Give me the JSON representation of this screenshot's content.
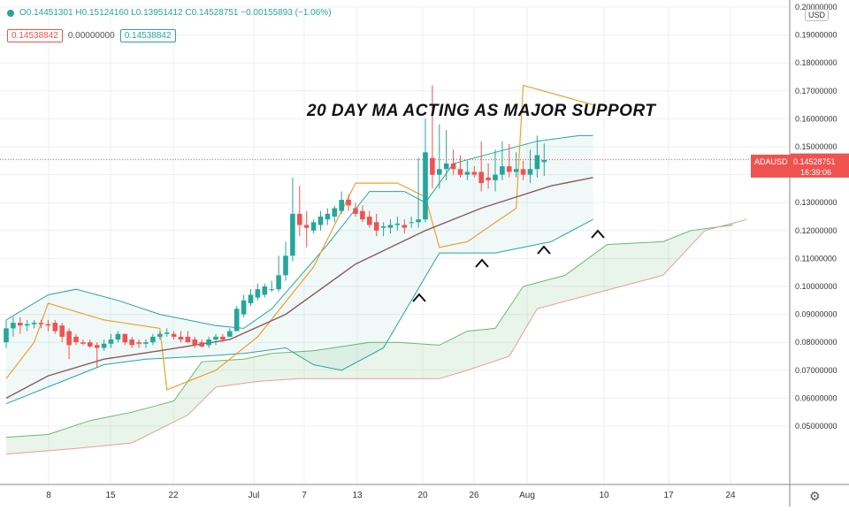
{
  "legend": {
    "ohlc_text": "O0.14451301  H0.15124160  L0.13951412  C0.14528751  −0.00155893 (−1.06%)",
    "indicator_a": "0.14538842",
    "indicator_b": "0.00000000",
    "indicator_c": "0.14538842"
  },
  "currency_button": "USD",
  "annotation_text": "20 DAY MA ACTING AS MAJOR SUPPORT",
  "price_labels": {
    "last_price": "0.14538842",
    "current_close": "0.14528751",
    "symbol": "ADAUSD",
    "countdown": "16:39:06"
  },
  "chart_data": {
    "type": "candlestick",
    "symbol": "ADAUSD",
    "annotation": "20 DAY MA ACTING AS MAJOR SUPPORT",
    "ylim": [
      0.045,
      0.2
    ],
    "y_ticks": [
      "0.05000000",
      "0.06000000",
      "0.07000000",
      "0.08000000",
      "0.09000000",
      "0.10000000",
      "0.11000000",
      "0.12000000",
      "0.13000000",
      "0.14000000",
      "0.15000000",
      "0.16000000",
      "0.17000000",
      "0.18000000",
      "0.19000000",
      "0.20000000"
    ],
    "x_ticks": [
      "8",
      "15",
      "22",
      "Jul",
      "7",
      "13",
      "20",
      "26",
      "Aug",
      "10",
      "17",
      "24"
    ],
    "last_price": 0.14538842,
    "close": 0.14528751,
    "ohlc": {
      "o": 0.14451301,
      "h": 0.1512416,
      "l": 0.13951412,
      "c": 0.14528751,
      "change": -0.00155893,
      "change_pct": -1.06
    },
    "candles": [
      {
        "o": 0.08,
        "h": 0.088,
        "l": 0.078,
        "c": 0.085
      },
      {
        "o": 0.085,
        "h": 0.089,
        "l": 0.082,
        "c": 0.087
      },
      {
        "o": 0.087,
        "h": 0.089,
        "l": 0.083,
        "c": 0.086
      },
      {
        "o": 0.086,
        "h": 0.088,
        "l": 0.084,
        "c": 0.0865
      },
      {
        "o": 0.0865,
        "h": 0.088,
        "l": 0.085,
        "c": 0.087
      },
      {
        "o": 0.087,
        "h": 0.088,
        "l": 0.085,
        "c": 0.0865
      },
      {
        "o": 0.0865,
        "h": 0.088,
        "l": 0.084,
        "c": 0.086
      },
      {
        "o": 0.087,
        "h": 0.088,
        "l": 0.083,
        "c": 0.084
      },
      {
        "o": 0.086,
        "h": 0.087,
        "l": 0.08,
        "c": 0.082
      },
      {
        "o": 0.084,
        "h": 0.085,
        "l": 0.074,
        "c": 0.079
      },
      {
        "o": 0.082,
        "h": 0.083,
        "l": 0.079,
        "c": 0.08
      },
      {
        "o": 0.08,
        "h": 0.081,
        "l": 0.079,
        "c": 0.0795
      },
      {
        "o": 0.08,
        "h": 0.081,
        "l": 0.078,
        "c": 0.0785
      },
      {
        "o": 0.079,
        "h": 0.08,
        "l": 0.071,
        "c": 0.078
      },
      {
        "o": 0.078,
        "h": 0.081,
        "l": 0.077,
        "c": 0.0795
      },
      {
        "o": 0.0795,
        "h": 0.083,
        "l": 0.078,
        "c": 0.081
      },
      {
        "o": 0.081,
        "h": 0.084,
        "l": 0.08,
        "c": 0.083
      },
      {
        "o": 0.083,
        "h": 0.083,
        "l": 0.079,
        "c": 0.08
      },
      {
        "o": 0.081,
        "h": 0.082,
        "l": 0.078,
        "c": 0.079
      },
      {
        "o": 0.08,
        "h": 0.081,
        "l": 0.078,
        "c": 0.0795
      },
      {
        "o": 0.0795,
        "h": 0.081,
        "l": 0.078,
        "c": 0.08
      },
      {
        "o": 0.08,
        "h": 0.083,
        "l": 0.079,
        "c": 0.082
      },
      {
        "o": 0.082,
        "h": 0.084,
        "l": 0.081,
        "c": 0.083
      },
      {
        "o": 0.083,
        "h": 0.085,
        "l": 0.082,
        "c": 0.0835
      },
      {
        "o": 0.083,
        "h": 0.084,
        "l": 0.081,
        "c": 0.082
      },
      {
        "o": 0.082,
        "h": 0.084,
        "l": 0.08,
        "c": 0.081
      },
      {
        "o": 0.082,
        "h": 0.084,
        "l": 0.08,
        "c": 0.08
      },
      {
        "o": 0.081,
        "h": 0.082,
        "l": 0.078,
        "c": 0.079
      },
      {
        "o": 0.08,
        "h": 0.081,
        "l": 0.078,
        "c": 0.0785
      },
      {
        "o": 0.079,
        "h": 0.082,
        "l": 0.078,
        "c": 0.081
      },
      {
        "o": 0.081,
        "h": 0.083,
        "l": 0.079,
        "c": 0.082
      },
      {
        "o": 0.082,
        "h": 0.083,
        "l": 0.08,
        "c": 0.081
      },
      {
        "o": 0.082,
        "h": 0.085,
        "l": 0.082,
        "c": 0.084
      },
      {
        "o": 0.084,
        "h": 0.093,
        "l": 0.084,
        "c": 0.092
      },
      {
        "o": 0.09,
        "h": 0.097,
        "l": 0.089,
        "c": 0.095
      },
      {
        "o": 0.094,
        "h": 0.099,
        "l": 0.093,
        "c": 0.097
      },
      {
        "o": 0.096,
        "h": 0.101,
        "l": 0.095,
        "c": 0.099
      },
      {
        "o": 0.097,
        "h": 0.101,
        "l": 0.096,
        "c": 0.1
      },
      {
        "o": 0.099,
        "h": 0.102,
        "l": 0.098,
        "c": 0.099
      },
      {
        "o": 0.099,
        "h": 0.111,
        "l": 0.098,
        "c": 0.104
      },
      {
        "o": 0.104,
        "h": 0.116,
        "l": 0.102,
        "c": 0.111
      },
      {
        "o": 0.111,
        "h": 0.139,
        "l": 0.109,
        "c": 0.126
      },
      {
        "o": 0.126,
        "h": 0.136,
        "l": 0.118,
        "c": 0.122
      },
      {
        "o": 0.122,
        "h": 0.127,
        "l": 0.114,
        "c": 0.121
      },
      {
        "o": 0.12,
        "h": 0.124,
        "l": 0.119,
        "c": 0.123
      },
      {
        "o": 0.122,
        "h": 0.127,
        "l": 0.12,
        "c": 0.125
      },
      {
        "o": 0.124,
        "h": 0.128,
        "l": 0.122,
        "c": 0.126
      },
      {
        "o": 0.125,
        "h": 0.129,
        "l": 0.123,
        "c": 0.128
      },
      {
        "o": 0.127,
        "h": 0.134,
        "l": 0.126,
        "c": 0.131
      },
      {
        "o": 0.131,
        "h": 0.133,
        "l": 0.127,
        "c": 0.129
      },
      {
        "o": 0.128,
        "h": 0.13,
        "l": 0.125,
        "c": 0.126
      },
      {
        "o": 0.127,
        "h": 0.129,
        "l": 0.123,
        "c": 0.124
      },
      {
        "o": 0.125,
        "h": 0.127,
        "l": 0.121,
        "c": 0.122
      },
      {
        "o": 0.123,
        "h": 0.126,
        "l": 0.118,
        "c": 0.12
      },
      {
        "o": 0.121,
        "h": 0.123,
        "l": 0.118,
        "c": 0.1215
      },
      {
        "o": 0.121,
        "h": 0.124,
        "l": 0.119,
        "c": 0.122
      },
      {
        "o": 0.122,
        "h": 0.125,
        "l": 0.12,
        "c": 0.1225
      },
      {
        "o": 0.122,
        "h": 0.124,
        "l": 0.119,
        "c": 0.121
      },
      {
        "o": 0.123,
        "h": 0.125,
        "l": 0.121,
        "c": 0.123
      },
      {
        "o": 0.123,
        "h": 0.146,
        "l": 0.121,
        "c": 0.124
      },
      {
        "o": 0.124,
        "h": 0.16,
        "l": 0.123,
        "c": 0.148
      },
      {
        "o": 0.146,
        "h": 0.172,
        "l": 0.135,
        "c": 0.14
      },
      {
        "o": 0.14,
        "h": 0.158,
        "l": 0.135,
        "c": 0.142
      },
      {
        "o": 0.142,
        "h": 0.156,
        "l": 0.138,
        "c": 0.144
      },
      {
        "o": 0.144,
        "h": 0.149,
        "l": 0.14,
        "c": 0.142
      },
      {
        "o": 0.142,
        "h": 0.147,
        "l": 0.139,
        "c": 0.14
      },
      {
        "o": 0.14,
        "h": 0.145,
        "l": 0.138,
        "c": 0.141
      },
      {
        "o": 0.141,
        "h": 0.143,
        "l": 0.139,
        "c": 0.14
      },
      {
        "o": 0.141,
        "h": 0.152,
        "l": 0.134,
        "c": 0.137
      },
      {
        "o": 0.139,
        "h": 0.144,
        "l": 0.135,
        "c": 0.138
      },
      {
        "o": 0.138,
        "h": 0.149,
        "l": 0.134,
        "c": 0.14
      },
      {
        "o": 0.14,
        "h": 0.152,
        "l": 0.138,
        "c": 0.143
      },
      {
        "o": 0.143,
        "h": 0.151,
        "l": 0.139,
        "c": 0.141
      },
      {
        "o": 0.141,
        "h": 0.148,
        "l": 0.139,
        "c": 0.142
      },
      {
        "o": 0.142,
        "h": 0.145,
        "l": 0.138,
        "c": 0.14
      },
      {
        "o": 0.14,
        "h": 0.149,
        "l": 0.137,
        "c": 0.142
      },
      {
        "o": 0.142,
        "h": 0.154,
        "l": 0.139,
        "c": 0.147
      },
      {
        "o": 0.1445,
        "h": 0.1512,
        "l": 0.1395,
        "c": 0.1453
      }
    ],
    "series": [
      {
        "name": "20 DAY MA",
        "points": [
          [
            0,
            0.06
          ],
          [
            6,
            0.068
          ],
          [
            14,
            0.074
          ],
          [
            22,
            0.077
          ],
          [
            32,
            0.081
          ],
          [
            40,
            0.09
          ],
          [
            50,
            0.108
          ],
          [
            60,
            0.12
          ],
          [
            68,
            0.128
          ],
          [
            78,
            0.136
          ],
          [
            84,
            0.139
          ]
        ]
      },
      {
        "points": [
          [
            0,
            0.088
          ],
          [
            6,
            0.097
          ],
          [
            10,
            0.099
          ],
          [
            16,
            0.095
          ],
          [
            22,
            0.09
          ],
          [
            30,
            0.086
          ],
          [
            34,
            0.085
          ],
          [
            38,
            0.092
          ],
          [
            46,
            0.115
          ],
          [
            52,
            0.134
          ],
          [
            57,
            0.134
          ],
          [
            60,
            0.13
          ],
          [
            64,
            0.144
          ],
          [
            70,
            0.148
          ],
          [
            76,
            0.152
          ],
          [
            82,
            0.154
          ],
          [
            84,
            0.154
          ]
        ]
      },
      {
        "points": [
          [
            0,
            0.058
          ],
          [
            8,
            0.066
          ],
          [
            14,
            0.072
          ],
          [
            20,
            0.074
          ],
          [
            28,
            0.075
          ],
          [
            34,
            0.076
          ],
          [
            40,
            0.078
          ],
          [
            44,
            0.072
          ],
          [
            48,
            0.07
          ],
          [
            54,
            0.078
          ],
          [
            62,
            0.112
          ],
          [
            70,
            0.112
          ],
          [
            78,
            0.116
          ],
          [
            84,
            0.124
          ]
        ]
      },
      {
        "points": [
          [
            0,
            0.067
          ],
          [
            4,
            0.08
          ],
          [
            6,
            0.094
          ],
          [
            14,
            0.088
          ],
          [
            22,
            0.085
          ],
          [
            23,
            0.063
          ],
          [
            30,
            0.07
          ],
          [
            36,
            0.082
          ],
          [
            44,
            0.107
          ],
          [
            50,
            0.137
          ],
          [
            56,
            0.137
          ],
          [
            60,
            0.132
          ],
          [
            62,
            0.114
          ],
          [
            66,
            0.116
          ],
          [
            73,
            0.128
          ],
          [
            74,
            0.172
          ],
          [
            84,
            0.165
          ]
        ]
      },
      {
        "points": [
          [
            0,
            0.046
          ],
          [
            6,
            0.047
          ],
          [
            12,
            0.052
          ],
          [
            18,
            0.055
          ],
          [
            24,
            0.059
          ],
          [
            28,
            0.073
          ],
          [
            34,
            0.074
          ],
          [
            38,
            0.076
          ],
          [
            44,
            0.077
          ],
          [
            52,
            0.08
          ],
          [
            56,
            0.08
          ],
          [
            62,
            0.079
          ],
          [
            66,
            0.084
          ],
          [
            70,
            0.085
          ],
          [
            74,
            0.1
          ],
          [
            80,
            0.104
          ],
          [
            86,
            0.115
          ],
          [
            94,
            0.116
          ],
          [
            98,
            0.12
          ],
          [
            104,
            0.122
          ]
        ]
      },
      {
        "points": [
          [
            0,
            0.04
          ],
          [
            10,
            0.042
          ],
          [
            18,
            0.044
          ],
          [
            26,
            0.054
          ],
          [
            30,
            0.064
          ],
          [
            36,
            0.066
          ],
          [
            42,
            0.067
          ],
          [
            54,
            0.067
          ],
          [
            62,
            0.067
          ],
          [
            66,
            0.07
          ],
          [
            72,
            0.075
          ],
          [
            76,
            0.092
          ],
          [
            82,
            0.096
          ],
          [
            88,
            0.1
          ],
          [
            94,
            0.104
          ],
          [
            100,
            0.12
          ],
          [
            106,
            0.124
          ]
        ]
      }
    ]
  }
}
